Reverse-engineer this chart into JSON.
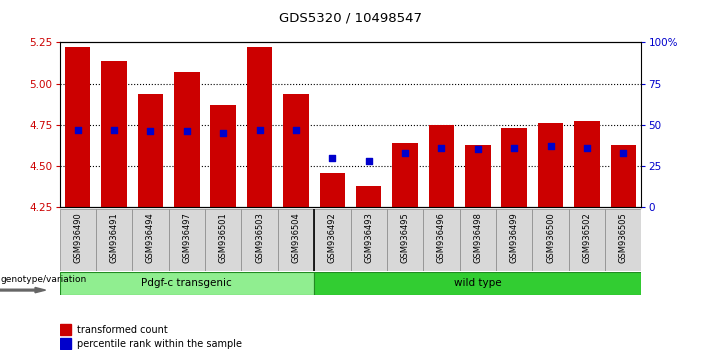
{
  "title": "GDS5320 / 10498547",
  "samples": [
    "GSM936490",
    "GSM936491",
    "GSM936494",
    "GSM936497",
    "GSM936501",
    "GSM936503",
    "GSM936504",
    "GSM936492",
    "GSM936493",
    "GSM936495",
    "GSM936496",
    "GSM936498",
    "GSM936499",
    "GSM936500",
    "GSM936502",
    "GSM936505"
  ],
  "transformed_count": [
    5.22,
    5.14,
    4.94,
    5.07,
    4.87,
    5.22,
    4.94,
    4.46,
    4.38,
    4.64,
    4.75,
    4.63,
    4.73,
    4.76,
    4.77,
    4.63
  ],
  "percentile_rank": [
    47,
    47,
    46,
    46,
    45,
    47,
    47,
    30,
    28,
    33,
    36,
    35,
    36,
    37,
    36,
    33
  ],
  "ylim_left": [
    4.25,
    5.25
  ],
  "ylim_right": [
    0,
    100
  ],
  "bar_color": "#cc0000",
  "dot_color": "#0000cc",
  "background_color": "#ffffff",
  "plot_bg_color": "#ffffff",
  "transgenic_label": "Pdgf-c transgenic",
  "wildtype_label": "wild type",
  "transgenic_color": "#90ee90",
  "wildtype_color": "#32cd32",
  "ylabel_left_color": "#cc0000",
  "ylabel_right_color": "#0000cc",
  "n_transgenic": 7,
  "n_wildtype": 9,
  "legend_transformed": "transformed count",
  "legend_percentile": "percentile rank within the sample",
  "yticks_left": [
    4.25,
    4.5,
    4.75,
    5.0,
    5.25
  ],
  "yticks_right": [
    0,
    25,
    50,
    75,
    100
  ],
  "ytick_right_labels": [
    "0",
    "25",
    "50",
    "75",
    "100%"
  ],
  "bar_width": 0.7
}
